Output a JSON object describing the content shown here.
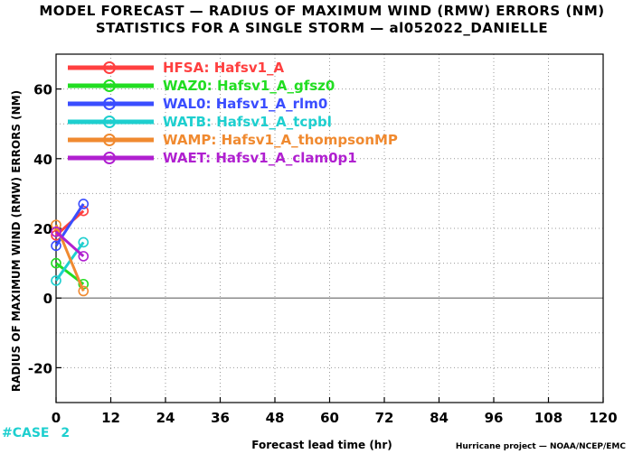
{
  "chart_data": {
    "type": "line",
    "title": "MODEL FORECAST — RADIUS OF MAXIMUM WIND (RMW) ERRORS (NM)",
    "subtitle": "STATISTICS FOR A SINGLE STORM — al052022_DANIELLE",
    "xlabel": "Forecast lead time (hr)",
    "ylabel": "RADIUS OF MAXIMUM WIND (RMW) ERRORS (NM)",
    "xlim": [
      0,
      120
    ],
    "ylim": [
      -30,
      70
    ],
    "xticks": [
      0,
      12,
      24,
      36,
      48,
      60,
      72,
      84,
      96,
      108,
      120
    ],
    "yticks": [
      -20,
      0,
      20,
      40,
      60
    ],
    "grid": true,
    "legend_position": "top-left",
    "x": [
      0,
      6
    ],
    "series": [
      {
        "name": "HFSA: Hafsv1_A",
        "color": "#ff4040",
        "values": [
          18,
          25
        ]
      },
      {
        "name": "WAZ0: Hafsv1_A_gfsz0",
        "color": "#22dd22",
        "values": [
          10,
          4
        ]
      },
      {
        "name": "WAL0: Hafsv1_A_rlm0",
        "color": "#3a4dff",
        "values": [
          15,
          27
        ]
      },
      {
        "name": "WATB: Hafsv1_A_tcpbl",
        "color": "#1ecfcf",
        "values": [
          5,
          16
        ]
      },
      {
        "name": "WAMP: Hafsv1_A_thompsonMP",
        "color": "#f08a30",
        "values": [
          21,
          2
        ]
      },
      {
        "name": "WAET: Hafsv1_A_clam0p1",
        "color": "#b020d0",
        "values": [
          19,
          12
        ]
      }
    ],
    "case_labels": [
      "2"
    ]
  },
  "case_prefix": "#CASE",
  "case_color": "#1ecfcf",
  "footer": "Hurricane project — NOAA/NCEP/EMC"
}
